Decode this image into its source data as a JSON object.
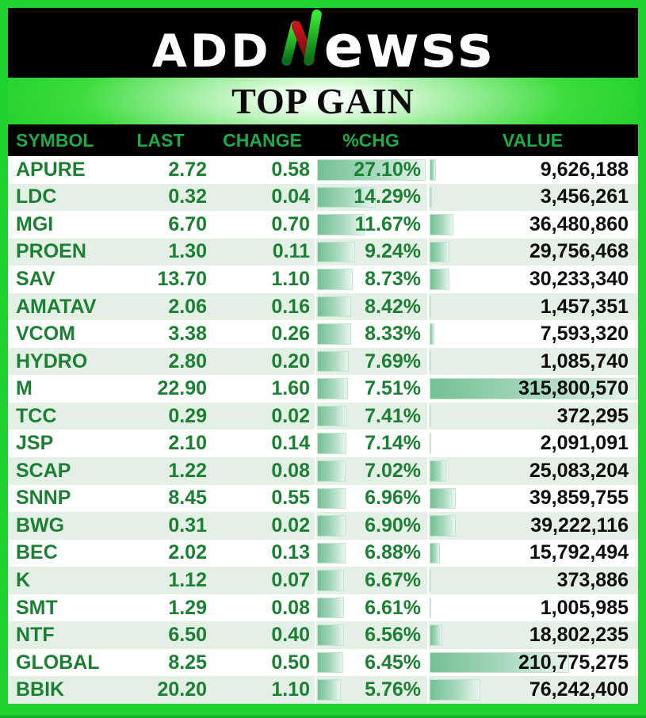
{
  "title": "TOP GAIN",
  "brand": {
    "logo_prefix": "ADD",
    "logo_n": "N",
    "logo_suffix": "ewss"
  },
  "colors": {
    "border_green": "#1ed32e",
    "row_text_green": "#1c8034",
    "header_label_green": "#1fa94d",
    "alt_row_green": "#e4f0e5",
    "bar_green": "#74c093",
    "value_text_black": "#0d0d0d",
    "logo_n_green": "#2bd42b",
    "logo_n_red": "#b01218"
  },
  "chart_data": {
    "type": "table",
    "title": "TOP GAIN",
    "columns": [
      "SYMBOL",
      "LAST",
      "CHANGE",
      "%CHG",
      "VALUE"
    ],
    "bar_scaling": {
      "pct_chg_max": 27.1,
      "value_max": 315800570
    },
    "rows": [
      {
        "symbol": "APURE",
        "last": "2.72",
        "change": "0.58",
        "pct_chg": "27.10%",
        "pct_num": 27.1,
        "value": "9,626,188",
        "value_num": 9626188
      },
      {
        "symbol": "LDC",
        "last": "0.32",
        "change": "0.04",
        "pct_chg": "14.29%",
        "pct_num": 14.29,
        "value": "3,456,261",
        "value_num": 3456261
      },
      {
        "symbol": "MGI",
        "last": "6.70",
        "change": "0.70",
        "pct_chg": "11.67%",
        "pct_num": 11.67,
        "value": "36,480,860",
        "value_num": 36480860
      },
      {
        "symbol": "PROEN",
        "last": "1.30",
        "change": "0.11",
        "pct_chg": "9.24%",
        "pct_num": 9.24,
        "value": "29,756,468",
        "value_num": 29756468
      },
      {
        "symbol": "SAV",
        "last": "13.70",
        "change": "1.10",
        "pct_chg": "8.73%",
        "pct_num": 8.73,
        "value": "30,233,340",
        "value_num": 30233340
      },
      {
        "symbol": "AMATAV",
        "last": "2.06",
        "change": "0.16",
        "pct_chg": "8.42%",
        "pct_num": 8.42,
        "value": "1,457,351",
        "value_num": 1457351
      },
      {
        "symbol": "VCOM",
        "last": "3.38",
        "change": "0.26",
        "pct_chg": "8.33%",
        "pct_num": 8.33,
        "value": "7,593,320",
        "value_num": 7593320
      },
      {
        "symbol": "HYDRO",
        "last": "2.80",
        "change": "0.20",
        "pct_chg": "7.69%",
        "pct_num": 7.69,
        "value": "1,085,740",
        "value_num": 1085740
      },
      {
        "symbol": "M",
        "last": "22.90",
        "change": "1.60",
        "pct_chg": "7.51%",
        "pct_num": 7.51,
        "value": "315,800,570",
        "value_num": 315800570
      },
      {
        "symbol": "TCC",
        "last": "0.29",
        "change": "0.02",
        "pct_chg": "7.41%",
        "pct_num": 7.41,
        "value": "372,295",
        "value_num": 372295
      },
      {
        "symbol": "JSP",
        "last": "2.10",
        "change": "0.14",
        "pct_chg": "7.14%",
        "pct_num": 7.14,
        "value": "2,091,091",
        "value_num": 2091091
      },
      {
        "symbol": "SCAP",
        "last": "1.22",
        "change": "0.08",
        "pct_chg": "7.02%",
        "pct_num": 7.02,
        "value": "25,083,204",
        "value_num": 25083204
      },
      {
        "symbol": "SNNP",
        "last": "8.45",
        "change": "0.55",
        "pct_chg": "6.96%",
        "pct_num": 6.96,
        "value": "39,859,755",
        "value_num": 39859755
      },
      {
        "symbol": "BWG",
        "last": "0.31",
        "change": "0.02",
        "pct_chg": "6.90%",
        "pct_num": 6.9,
        "value": "39,222,116",
        "value_num": 39222116
      },
      {
        "symbol": "BEC",
        "last": "2.02",
        "change": "0.13",
        "pct_chg": "6.88%",
        "pct_num": 6.88,
        "value": "15,792,494",
        "value_num": 15792494
      },
      {
        "symbol": "K",
        "last": "1.12",
        "change": "0.07",
        "pct_chg": "6.67%",
        "pct_num": 6.67,
        "value": "373,886",
        "value_num": 373886
      },
      {
        "symbol": "SMT",
        "last": "1.29",
        "change": "0.08",
        "pct_chg": "6.61%",
        "pct_num": 6.61,
        "value": "1,005,985",
        "value_num": 1005985
      },
      {
        "symbol": "NTF",
        "last": "6.50",
        "change": "0.40",
        "pct_chg": "6.56%",
        "pct_num": 6.56,
        "value": "18,802,235",
        "value_num": 18802235
      },
      {
        "symbol": "GLOBAL",
        "last": "8.25",
        "change": "0.50",
        "pct_chg": "6.45%",
        "pct_num": 6.45,
        "value": "210,775,275",
        "value_num": 210775275
      },
      {
        "symbol": "BBIK",
        "last": "20.20",
        "change": "1.10",
        "pct_chg": "5.76%",
        "pct_num": 5.76,
        "value": "76,242,400",
        "value_num": 76242400
      }
    ]
  }
}
